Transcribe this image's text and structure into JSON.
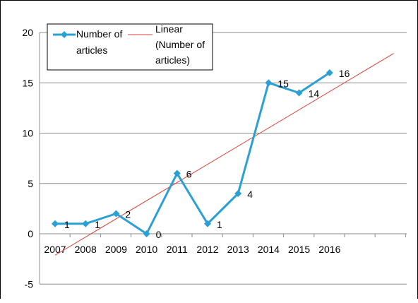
{
  "chart_data": {
    "type": "line",
    "categories": [
      "2007",
      "2008",
      "2009",
      "2010",
      "2011",
      "2012",
      "2013",
      "2014",
      "2015",
      "2016"
    ],
    "series": [
      {
        "name": "Number of articles",
        "values": [
          1,
          1,
          2,
          0,
          6,
          1,
          4,
          15,
          14,
          16
        ],
        "data_labels": [
          "1",
          "1",
          "2",
          "0",
          "6",
          "1",
          "4",
          "15",
          "14",
          "16"
        ],
        "color": "#2aa0d4",
        "marker": "diamond"
      },
      {
        "name": "Linear (Number of articles)",
        "type": "trendline",
        "color": "#e0413a"
      }
    ],
    "y_ticks": [
      "20",
      "15",
      "10",
      "5",
      "0",
      "-5"
    ],
    "ylim": [
      -5,
      20
    ],
    "grid": true,
    "legend_position": "top-left",
    "legend": {
      "series_label_lines": [
        "Number of",
        "articles"
      ],
      "trend_label_lines": [
        "Linear",
        "(Number of",
        "articles)"
      ]
    }
  }
}
